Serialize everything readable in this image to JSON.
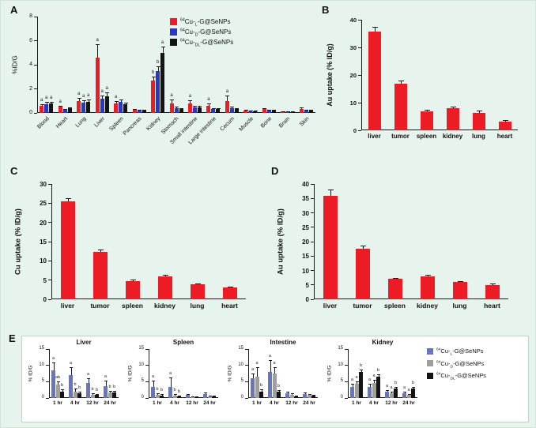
{
  "figure": {
    "background": "#e7f3ed",
    "panel_labels": {
      "A": "A",
      "B": "B",
      "C": "C",
      "D": "D",
      "E": "E"
    }
  },
  "tracers": [
    {
      "label": "64Cu-L-G@SeNPs",
      "isotope": "64",
      "element": "Cu",
      "chirality": "L",
      "suffix": "-G@SeNPs",
      "color_a": "#ed1c24",
      "color_e": "#6674c1"
    },
    {
      "label": "64Cu-D-G@SeNPs",
      "isotope": "64",
      "element": "Cu",
      "chirality": "D",
      "suffix": "-G@SeNPs",
      "color_a": "#2b36c8",
      "color_e": "#9e9e9e"
    },
    {
      "label": "64Cu-DL-G@SeNPs",
      "isotope": "64",
      "element": "Cu",
      "chirality": "DL",
      "suffix": "-G@SeNPs",
      "color_a": "#141414",
      "color_e": "#141414"
    }
  ],
  "chart_data": [
    {
      "id": "A",
      "type": "bar",
      "ylabel": "%ID/G",
      "ylim": [
        0,
        8
      ],
      "yticks": [
        0,
        2,
        4,
        6,
        8
      ],
      "legend_position": "top-right-inside",
      "categories": [
        "Blood",
        "Heart",
        "Lung",
        "Liver",
        "Spleen",
        "Pancreas",
        "Kidney",
        "Stomach",
        "Small intestine",
        "Large intestine",
        "Cecum",
        "Muscle",
        "Bone",
        "Brain",
        "Skin"
      ],
      "series": [
        {
          "name": "64Cu-L-G@SeNPs",
          "color": "#ed1c24",
          "values": [
            0.6,
            0.5,
            1.0,
            4.6,
            0.8,
            0.25,
            2.7,
            0.8,
            0.8,
            0.6,
            1.0,
            0.2,
            0.3,
            0.1,
            0.35
          ],
          "errors": [
            0.15,
            0.1,
            0.25,
            1.1,
            0.2,
            0.08,
            0.3,
            0.3,
            0.25,
            0.2,
            0.45,
            0.05,
            0.1,
            0.04,
            0.1
          ],
          "sig": [
            "a",
            "a",
            "a",
            "a",
            "a",
            "",
            "b",
            "a",
            "a",
            "a",
            "a",
            "",
            "",
            "",
            ""
          ]
        },
        {
          "name": "64Cu-D-G@SeNPs",
          "color": "#2b36c8",
          "values": [
            0.75,
            0.3,
            0.85,
            1.2,
            0.9,
            0.2,
            3.5,
            0.4,
            0.45,
            0.3,
            0.4,
            0.15,
            0.2,
            0.08,
            0.2
          ],
          "errors": [
            0.15,
            0.06,
            0.2,
            0.25,
            0.2,
            0.05,
            0.4,
            0.1,
            0.12,
            0.08,
            0.12,
            0.04,
            0.06,
            0.03,
            0.05
          ],
          "sig": [
            "a",
            "",
            "a",
            "a",
            "",
            "",
            "b",
            "",
            "",
            "",
            "",
            "",
            "",
            "",
            ""
          ]
        },
        {
          "name": "64Cu-DL-G@SeNPs",
          "color": "#141414",
          "values": [
            0.8,
            0.4,
            0.9,
            1.4,
            0.7,
            0.2,
            5.0,
            0.3,
            0.45,
            0.3,
            0.3,
            0.15,
            0.2,
            0.08,
            0.2
          ],
          "errors": [
            0.15,
            0.08,
            0.2,
            0.3,
            0.15,
            0.05,
            0.5,
            0.08,
            0.12,
            0.08,
            0.1,
            0.04,
            0.06,
            0.03,
            0.05
          ],
          "sig": [
            "a",
            "",
            "a",
            "a",
            "",
            "",
            "a",
            "",
            "",
            "",
            "",
            "",
            "",
            "",
            ""
          ]
        }
      ]
    },
    {
      "id": "B",
      "type": "bar",
      "ylabel": "Au uptake (% ID/g)",
      "ylim": [
        0,
        40
      ],
      "yticks": [
        0,
        10,
        20,
        30,
        40
      ],
      "categories": [
        "liver",
        "tumor",
        "spleen",
        "kidney",
        "lung",
        "heart"
      ],
      "series": [
        {
          "color": "#ed1c24",
          "values": [
            35.8,
            17,
            7,
            8,
            6.3,
            3.2
          ],
          "errors": [
            1.6,
            1,
            0.5,
            0.6,
            0.8,
            0.5
          ]
        }
      ]
    },
    {
      "id": "C",
      "type": "bar",
      "ylabel": "Cu uptake (% ID/g)",
      "ylim": [
        0,
        30
      ],
      "yticks": [
        0,
        5,
        10,
        15,
        20,
        25,
        30
      ],
      "categories": [
        "liver",
        "tumor",
        "spleen",
        "kidney",
        "lung",
        "heart"
      ],
      "series": [
        {
          "color": "#ed1c24",
          "values": [
            25.5,
            12.3,
            4.8,
            6.0,
            3.9,
            3.0
          ],
          "errors": [
            0.9,
            0.6,
            0.3,
            0.3,
            0.3,
            0.3
          ]
        }
      ]
    },
    {
      "id": "D",
      "type": "bar",
      "ylabel": "Au uptake (% ID/g)",
      "ylim": [
        0,
        40
      ],
      "yticks": [
        0,
        5,
        10,
        15,
        20,
        25,
        30,
        35,
        40
      ],
      "categories": [
        "liver",
        "tumor",
        "spleen",
        "kidney",
        "lung",
        "heart"
      ],
      "series": [
        {
          "color": "#ed1c24",
          "values": [
            36,
            17.5,
            7,
            8,
            6,
            5
          ],
          "errors": [
            2,
            1,
            0.5,
            0.5,
            0.4,
            0.4
          ]
        }
      ]
    },
    {
      "id": "E-liver",
      "type": "bar",
      "title": "Liver",
      "ylabel": "% ID/G",
      "ylim": [
        0,
        15
      ],
      "yticks": [
        0,
        5,
        10,
        15
      ],
      "categories": [
        "1 hr",
        "4 hr",
        "12 hr",
        "24 hr"
      ],
      "series": [
        {
          "name": "64Cu-L-G@SeNPs",
          "color": "#6674c1",
          "values": [
            8.5,
            7.0,
            4.5,
            3.7
          ],
          "errors": [
            2.3,
            2.5,
            1.6,
            1.7
          ],
          "sig": [
            "a",
            "a",
            "a",
            "a"
          ]
        },
        {
          "name": "64Cu-D-G@SeNPs",
          "color": "#9e9e9e",
          "values": [
            4.0,
            2.0,
            1.0,
            1.6
          ],
          "errors": [
            1.0,
            0.8,
            0.4,
            0.6
          ],
          "sig": [
            "ab",
            "b",
            "b",
            "b"
          ]
        },
        {
          "name": "64Cu-DL-G@SeNPs",
          "color": "#141414",
          "values": [
            2.0,
            1.5,
            0.9,
            1.6
          ],
          "errors": [
            0.6,
            0.5,
            0.3,
            0.5
          ],
          "sig": [
            "b",
            "b",
            "b",
            "b"
          ]
        }
      ]
    },
    {
      "id": "E-spleen",
      "type": "bar",
      "title": "Spleen",
      "ylabel": "% ID/G",
      "ylim": [
        0,
        15
      ],
      "yticks": [
        0,
        5,
        10,
        15
      ],
      "categories": [
        "1 hr",
        "4 hr",
        "12 hr",
        "24 hr"
      ],
      "series": [
        {
          "name": "64Cu-L-G@SeNPs",
          "color": "#6674c1",
          "values": [
            3.5,
            3.5,
            0.9,
            1.1
          ],
          "errors": [
            1.8,
            2.8,
            0.4,
            0.5
          ],
          "sig": [
            "a",
            "a",
            "",
            ""
          ]
        },
        {
          "name": "64Cu-D-G@SeNPs",
          "color": "#9e9e9e",
          "values": [
            1.0,
            0.8,
            0.3,
            0.5
          ],
          "errors": [
            0.4,
            0.4,
            0.15,
            0.2
          ],
          "sig": [
            "b",
            "b",
            "",
            ""
          ]
        },
        {
          "name": "64Cu-DL-G@SeNPs",
          "color": "#141414",
          "values": [
            0.8,
            0.5,
            0.3,
            0.5
          ],
          "errors": [
            0.3,
            0.2,
            0.1,
            0.2
          ],
          "sig": [
            "b",
            "b",
            "",
            ""
          ]
        }
      ]
    },
    {
      "id": "E-intestine",
      "type": "bar",
      "title": "Intestine",
      "ylabel": "% ID/G",
      "ylim": [
        0,
        15
      ],
      "yticks": [
        0,
        5,
        10,
        15
      ],
      "categories": [
        "1 hr",
        "4 hr",
        "12 hr",
        "24 hr"
      ],
      "series": [
        {
          "name": "64Cu-L-G@SeNPs",
          "color": "#6674c1",
          "values": [
            6.0,
            8.0,
            1.5,
            1.2
          ],
          "errors": [
            1.5,
            3.5,
            0.5,
            0.4
          ],
          "sig": [
            "a",
            "a",
            "",
            ""
          ]
        },
        {
          "name": "64Cu-D-G@SeNPs",
          "color": "#9e9e9e",
          "values": [
            6.5,
            7.5,
            1.0,
            1.0
          ],
          "errors": [
            3.0,
            2.0,
            0.4,
            0.3
          ],
          "sig": [
            "a",
            "a",
            "",
            ""
          ]
        },
        {
          "name": "64Cu-DL-G@SeNPs",
          "color": "#141414",
          "values": [
            2.0,
            2.0,
            0.5,
            0.8
          ],
          "errors": [
            0.6,
            0.5,
            0.2,
            0.2
          ],
          "sig": [
            "b",
            "b",
            "",
            ""
          ]
        }
      ]
    },
    {
      "id": "E-kidney",
      "type": "bar",
      "title": "Kidney",
      "ylabel": "% ID/G",
      "ylim": [
        0,
        15
      ],
      "yticks": [
        0,
        5,
        10,
        15
      ],
      "categories": [
        "1 hr",
        "4 hr",
        "12 hr",
        "24 hr"
      ],
      "series": [
        {
          "name": "64Cu-L-G@SeNPs",
          "color": "#6674c1",
          "values": [
            3.5,
            3.5,
            2.0,
            1.5
          ],
          "errors": [
            0.8,
            0.8,
            0.5,
            0.4
          ],
          "sig": [
            "a",
            "a",
            "a",
            "a"
          ]
        },
        {
          "name": "64Cu-D-G@SeNPs",
          "color": "#9e9e9e",
          "values": [
            4.3,
            4.5,
            1.5,
            1.0
          ],
          "errors": [
            0.9,
            1.0,
            0.4,
            0.3
          ],
          "sig": [
            "a",
            "a",
            "a",
            "a"
          ]
        },
        {
          "name": "64Cu-DL-G@SeNPs",
          "color": "#141414",
          "values": [
            8.0,
            6.5,
            3.0,
            3.0
          ],
          "errors": [
            0.8,
            0.7,
            0.5,
            0.4
          ],
          "sig": [
            "b",
            "b",
            "b",
            "b"
          ]
        }
      ]
    }
  ]
}
